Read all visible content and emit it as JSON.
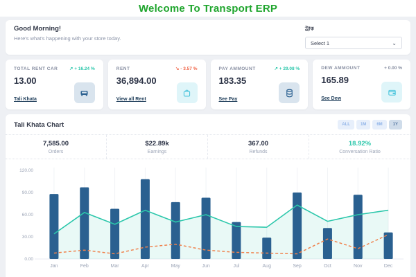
{
  "header": {
    "title": "Welcome To Transport ERP"
  },
  "greeting": {
    "title": "Good Morning!",
    "subtitle": "Here's what's happening with your store today."
  },
  "truck_filter": {
    "label": "ট্রাক",
    "selected_option": "Select 1"
  },
  "stat_cards": [
    {
      "label": "TOTAL RENT CAR",
      "delta": "↗ + 16.24 %",
      "trend": "up",
      "value": "13.00",
      "link": "Tali Khata",
      "icon": "car-icon"
    },
    {
      "label": "RENT",
      "delta": "↘ - 3.57 %",
      "trend": "down",
      "value": "36,894.00",
      "link": "View all Rent",
      "icon": "shopping-bag-icon"
    },
    {
      "label": "PAY AMMOUNT",
      "delta": "↗ + 29.08 %",
      "trend": "up",
      "value": "183.35",
      "link": "See Pay",
      "icon": "database-icon"
    },
    {
      "label": "DEW AMMOUNT",
      "delta": "+ 0.00 %",
      "trend": "flat",
      "value": "165.89",
      "link": "See Dew",
      "icon": "wallet-icon"
    }
  ],
  "chart_section": {
    "title": "Tali Khata Chart",
    "range_buttons": [
      "ALL",
      "1M",
      "6M",
      "1Y"
    ],
    "active_range": "1Y",
    "summary": [
      {
        "value": "7,585.00",
        "label": "Orders"
      },
      {
        "value": "$22.89k",
        "label": "Earnings"
      },
      {
        "value": "367.00",
        "label": "Refunds"
      },
      {
        "value": "18.92%",
        "label": "Conversation Ratio"
      }
    ]
  },
  "chart_data": {
    "type": "bar+line combo",
    "categories": [
      "Jan",
      "Feb",
      "Mar",
      "Apr",
      "May",
      "Jun",
      "Jul",
      "Aug",
      "Sep",
      "Oct",
      "Nov",
      "Dec"
    ],
    "series": [
      {
        "name": "Orders",
        "type": "area-line",
        "color": "#2cc7ab",
        "fill_opacity": 0.1,
        "values": [
          34,
          63,
          47,
          66,
          50,
          60,
          44,
          43,
          73,
          51,
          60,
          66
        ]
      },
      {
        "name": "Earnings",
        "type": "bar",
        "color": "#2a6090",
        "values": [
          88,
          97,
          68,
          108,
          77,
          83,
          50,
          29,
          90,
          42,
          87,
          36
        ]
      },
      {
        "name": "Refunds",
        "type": "dashed-line",
        "color": "#f0824d",
        "values": [
          8,
          12,
          7,
          16,
          20,
          12,
          9,
          8,
          7,
          27,
          14,
          33
        ]
      }
    ],
    "ylim": [
      0,
      120
    ],
    "ytick_labels": [
      "120.00",
      "90.00",
      "60.00",
      "30.00",
      "0.00"
    ],
    "grid": "vertical-only",
    "legend_position": "bottom-center"
  },
  "colors": {
    "accent_green": "#1fa52d",
    "teal": "#2cc7ab",
    "red": "#f06548",
    "bar_navy": "#2a6090",
    "orange": "#f0824d"
  }
}
